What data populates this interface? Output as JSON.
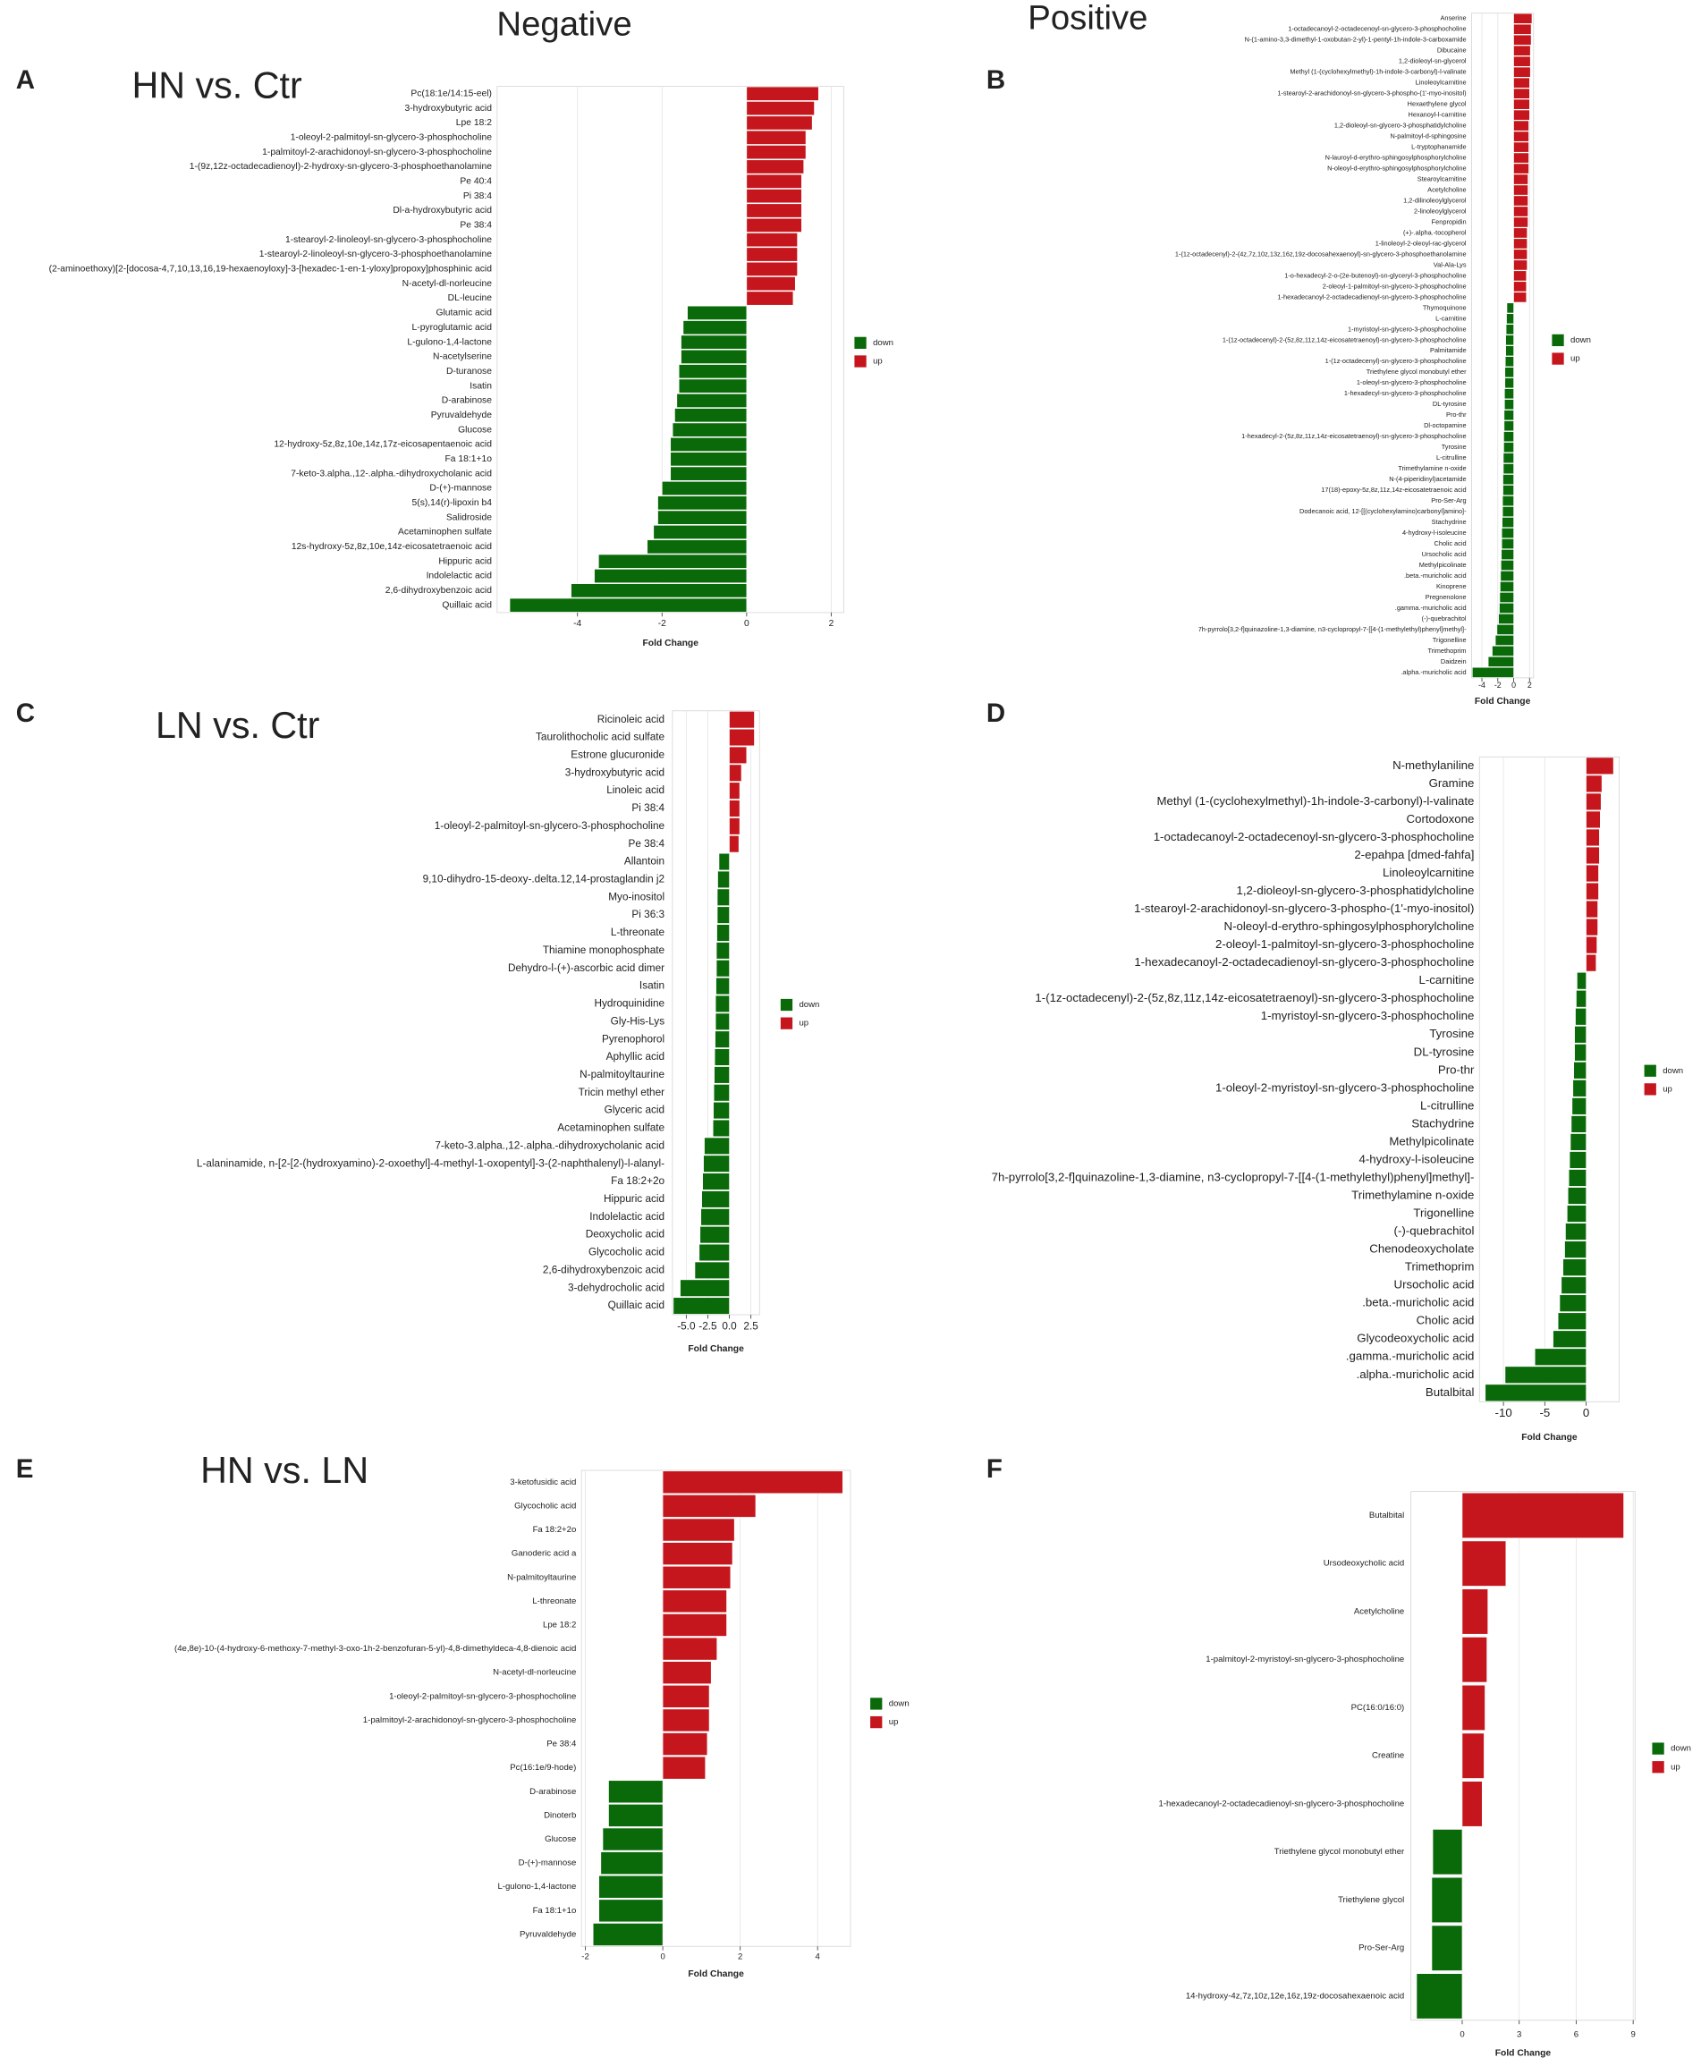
{
  "columns": [
    "Negative",
    "Positive"
  ],
  "chart_data": [
    {
      "type": "bar",
      "orientation": "horizontal",
      "panel": "A",
      "title": "HN vs. Ctr",
      "xlabel": "Fold Change",
      "categories": [
        "Pc(18:1e/14:15-eel)",
        "3-hydroxybutyric acid",
        "Lpe 18:2",
        "1-oleoyl-2-palmitoyl-sn-glycero-3-phosphocholine",
        "1-palmitoyl-2-arachidonoyl-sn-glycero-3-phosphocholine",
        "1-(9z,12z-octadecadienoyl)-2-hydroxy-sn-glycero-3-phosphoethanolamine",
        "Pe 40:4",
        "Pi 38:4",
        "Dl-a-hydroxybutyric acid",
        "Pe 38:4",
        "1-stearoyl-2-linoleoyl-sn-glycero-3-phosphocholine",
        "1-stearoyl-2-linoleoyl-sn-glycero-3-phosphoethanolamine",
        "(2-aminoethoxy)[2-[docosa-4,7,10,13,16,19-hexaenoyloxy]-3-[hexadec-1-en-1-yloxy]propoxy]phosphinic acid",
        "N-acetyl-dl-norleucine",
        "DL-leucine",
        "Glutamic acid",
        "L-pyroglutamic acid",
        "L-gulono-1,4-lactone",
        "N-acetylserine",
        "D-turanose",
        "Isatin",
        "D-arabinose",
        "Pyruvaldehyde",
        "Glucose",
        "12-hydroxy-5z,8z,10e,14z,17z-eicosapentaenoic acid",
        "Fa 18:1+1o",
        "7-keto-3.alpha.,12-.alpha.-dihydroxycholanic acid",
        "D-(+)-mannose",
        "5(s),14(r)-lipoxin b4",
        "Salidroside",
        "Acetaminophen sulfate",
        "12s-hydroxy-5z,8z,10e,14z-eicosatetraenoic acid",
        "Hippuric acid",
        "Indolelactic acid",
        "2,6-dihydroxybenzoic acid",
        "Quillaic acid"
      ],
      "values": [
        1.7,
        1.6,
        1.55,
        1.4,
        1.4,
        1.35,
        1.3,
        1.3,
        1.3,
        1.3,
        1.2,
        1.2,
        1.2,
        1.15,
        1.1,
        -1.4,
        -1.5,
        -1.55,
        -1.55,
        -1.6,
        -1.6,
        -1.65,
        -1.7,
        -1.75,
        -1.8,
        -1.8,
        -1.8,
        -2.0,
        -2.1,
        -2.1,
        -2.2,
        -2.35,
        -3.5,
        -3.6,
        -4.15,
        -5.6
      ],
      "xlim": [
        -5.9,
        2.3
      ],
      "xticks": [
        -4,
        -2,
        0,
        2
      ],
      "grid": true,
      "legend": [
        {
          "name": "down",
          "color": "#0a6a0a"
        },
        {
          "name": "up",
          "color": "#c4161c"
        }
      ]
    },
    {
      "type": "bar",
      "orientation": "horizontal",
      "panel": "B",
      "xlabel": "Fold Change",
      "categories": [
        "Anserine",
        "1-octadecanoyl-2-octadecenoyl-sn-glycero-3-phosphocholine",
        "N-(1-amino-3,3-dimethyl-1-oxobutan-2-yl)-1-pentyl-1h-indole-3-carboxamide",
        "Dibucaine",
        "1,2-dioleoyl-sn-glycerol",
        "Methyl (1-(cyclohexylmethyl)-1h-indole-3-carbonyl)-l-valinate",
        "Linoleoylcarnitine",
        "1-stearoyl-2-arachidonoyl-sn-glycero-3-phospho-(1'-myo-inositol)",
        "Hexaethylene glycol",
        "Hexanoyl-l-carnitine",
        "1,2-dioleoyl-sn-glycero-3-phosphatidylcholine",
        "N-palmitoyl-d-sphingosine",
        "L-tryptophanamide",
        "N-lauroyl-d-erythro-sphingosylphosphorylcholine",
        "N-oleoyl-d-erythro-sphingosylphosphorylcholine",
        "Stearoylcarnitine",
        "Acetylcholine",
        "1,2-dilinoleoylglycerol",
        "2-linoleoylglycerol",
        "Fenpropidin",
        "(+)-.alpha.-tocopherol",
        "1-linoleoyl-2-oleoyl-rac-glycerol",
        "1-(1z-octadecenyl)-2-(4z,7z,10z,13z,16z,19z-docosahexaenoyl)-sn-glycero-3-phosphoethanolamine",
        "Val-Ala-Lys",
        "1-o-hexadecyl-2-o-(2e-butenoyl)-sn-glyceryl-3-phosphocholine",
        "2-oleoyl-1-palmitoyl-sn-glycero-3-phosphocholine",
        "1-hexadecanoyl-2-octadecadienoyl-sn-glycero-3-phosphocholine",
        "Thymoquinone",
        "L-carnitine",
        "1-myristoyl-sn-glycero-3-phosphocholine",
        "1-(1z-octadecenyl)-2-(5z,8z,11z,14z-eicosatetraenoyl)-sn-glycero-3-phosphocholine",
        "Palmitamide",
        "1-(1z-octadecenyl)-sn-glycero-3-phosphocholine",
        "Triethylene glycol monobutyl ether",
        "1-oleoyl-sn-glycero-3-phosphocholine",
        "1-hexadecyl-sn-glycero-3-phosphocholine",
        "DL-tyrosine",
        "Pro-thr",
        "Dl-octopamine",
        "1-hexadecyl-2-(5z,8z,11z,14z-eicosatetraenoyl)-sn-glycero-3-phosphocholine",
        "Tyrosine",
        "L-citrulline",
        "Trimethylamine n-oxide",
        "N-(4-piperidinyl)acetamide",
        "17(18)-epoxy-5z,8z,11z,14z-eicosatetraenoic acid",
        "Pro-Ser-Arg",
        "Dodecanoic acid, 12-[[(cyclohexylamino)carbonyl]amino]-",
        "Stachydrine",
        "4-hydroxy-l-isoleucine",
        "Cholic acid",
        "Ursocholic acid",
        "Methylpicolinate",
        ".beta.-muricholic acid",
        "Kinoprene",
        "Pregnenolone",
        ".gamma.-muricholic acid",
        "(-)-quebrachitol",
        "7h-pyrrolo[3,2-f]quinazoline-1,3-diamine, n3-cyclopropyl-7-[[4-(1-methylethyl)phenyl]methyl]-",
        "Trigonelline",
        "Trimethoprim",
        "Daidzein",
        ".alpha.-muricholic acid"
      ],
      "values": [
        2.3,
        2.2,
        2.2,
        2.1,
        2.1,
        2.1,
        2.0,
        2.0,
        2.0,
        2.0,
        1.9,
        1.9,
        1.9,
        1.9,
        1.9,
        1.8,
        1.8,
        1.8,
        1.8,
        1.8,
        1.7,
        1.7,
        1.7,
        1.7,
        1.6,
        1.6,
        1.6,
        -0.85,
        -0.9,
        -0.95,
        -1.0,
        -1.0,
        -1.05,
        -1.1,
        -1.1,
        -1.15,
        -1.15,
        -1.2,
        -1.2,
        -1.25,
        -1.25,
        -1.3,
        -1.3,
        -1.35,
        -1.35,
        -1.4,
        -1.4,
        -1.45,
        -1.5,
        -1.5,
        -1.55,
        -1.6,
        -1.65,
        -1.7,
        -1.75,
        -1.8,
        -1.9,
        -2.1,
        -2.3,
        -2.7,
        -3.2,
        -5.2
      ],
      "xlim": [
        -5.3,
        2.5
      ],
      "xticks": [
        -4,
        -2,
        0,
        2
      ],
      "grid": true,
      "legend": [
        {
          "name": "down",
          "color": "#0a6a0a"
        },
        {
          "name": "up",
          "color": "#c4161c"
        }
      ]
    },
    {
      "type": "bar",
      "orientation": "horizontal",
      "panel": "C",
      "title": "LN vs. Ctr",
      "xlabel": "Fold Change",
      "categories": [
        "Ricinoleic acid",
        "Taurolithocholic acid sulfate",
        "Estrone glucuronide",
        "3-hydroxybutyric acid",
        "Linoleic acid",
        "Pi 38:4",
        "1-oleoyl-2-palmitoyl-sn-glycero-3-phosphocholine",
        "Pe 38:4",
        "Allantoin",
        "9,10-dihydro-15-deoxy-.delta.12,14-prostaglandin j2",
        "Myo-inositol",
        "Pi 36:3",
        "L-threonate",
        "Thiamine monophosphate",
        "Dehydro-l-(+)-ascorbic acid dimer",
        "Isatin",
        "Hydroquinidine",
        "Gly-His-Lys",
        "Pyrenophorol",
        "Aphyllic acid",
        "N-palmitoyltaurine",
        "Tricin methyl ether",
        "Glyceric acid",
        "Acetaminophen sulfate",
        "7-keto-3.alpha.,12-.alpha.-dihydroxycholanic acid",
        "L-alaninamide, n-[2-[2-(hydroxyamino)-2-oxoethyl]-4-methyl-1-oxopentyl]-3-(2-naphthalenyl)-l-alanyl-",
        "Fa 18:2+2o",
        "Hippuric acid",
        "Indolelactic acid",
        "Deoxycholic acid",
        "Glycocholic acid",
        "2,6-dihydroxybenzoic acid",
        "3-dehydrocholic acid",
        "Quillaic acid"
      ],
      "values": [
        2.9,
        2.9,
        2.0,
        1.4,
        1.2,
        1.2,
        1.2,
        1.1,
        -1.2,
        -1.35,
        -1.4,
        -1.4,
        -1.45,
        -1.5,
        -1.5,
        -1.55,
        -1.6,
        -1.6,
        -1.65,
        -1.7,
        -1.75,
        -1.8,
        -1.85,
        -1.9,
        -2.9,
        -3.0,
        -3.1,
        -3.2,
        -3.3,
        -3.4,
        -3.5,
        -4.0,
        -5.7,
        -6.5
      ],
      "xlim": [
        -6.6,
        3.5
      ],
      "xticks": [
        {
          "value": -5,
          "label": "-5.0"
        },
        -2.5,
        {
          "value": 0,
          "label": "0.0"
        },
        2.5
      ],
      "grid": true,
      "legend": [
        {
          "name": "down",
          "color": "#0a6a0a"
        },
        {
          "name": "up",
          "color": "#c4161c"
        }
      ]
    },
    {
      "type": "bar",
      "orientation": "horizontal",
      "panel": "D",
      "xlabel": "Fold Change",
      "categories": [
        "N-methylaniline",
        "Gramine",
        "Methyl (1-(cyclohexylmethyl)-1h-indole-3-carbonyl)-l-valinate",
        "Cortodoxone",
        "1-octadecanoyl-2-octadecenoyl-sn-glycero-3-phosphocholine",
        "2-epahpa [dmed-fahfa]",
        "Linoleoylcarnitine",
        "1,2-dioleoyl-sn-glycero-3-phosphatidylcholine",
        "1-stearoyl-2-arachidonoyl-sn-glycero-3-phospho-(1'-myo-inositol)",
        "N-oleoyl-d-erythro-sphingosylphosphorylcholine",
        "2-oleoyl-1-palmitoyl-sn-glycero-3-phosphocholine",
        "1-hexadecanoyl-2-octadecadienoyl-sn-glycero-3-phosphocholine",
        "L-carnitine",
        "1-(1z-octadecenyl)-2-(5z,8z,11z,14z-eicosatetraenoyl)-sn-glycero-3-phosphocholine",
        "1-myristoyl-sn-glycero-3-phosphocholine",
        "Tyrosine",
        "DL-tyrosine",
        "Pro-thr",
        "1-oleoyl-2-myristoyl-sn-glycero-3-phosphocholine",
        "L-citrulline",
        "Stachydrine",
        "Methylpicolinate",
        "4-hydroxy-l-isoleucine",
        "7h-pyrrolo[3,2-f]quinazoline-1,3-diamine, n3-cyclopropyl-7-[[4-(1-methylethyl)phenyl]methyl]-",
        "Trimethylamine n-oxide",
        "Trigonelline",
        "(-)-quebrachitol",
        "Chenodeoxycholate",
        "Trimethoprim",
        "Ursocholic acid",
        ".beta.-muricholic acid",
        "Cholic acid",
        "Glycodeoxycholic acid",
        ".gamma.-muricholic acid",
        ".alpha.-muricholic acid",
        "Butalbital"
      ],
      "values": [
        3.3,
        1.9,
        1.8,
        1.7,
        1.6,
        1.6,
        1.5,
        1.5,
        1.4,
        1.4,
        1.3,
        1.2,
        -1.1,
        -1.2,
        -1.3,
        -1.4,
        -1.4,
        -1.5,
        -1.6,
        -1.7,
        -1.8,
        -1.9,
        -2.0,
        -2.1,
        -2.2,
        -2.3,
        -2.5,
        -2.6,
        -2.8,
        -3.0,
        -3.2,
        -3.4,
        -4.0,
        -6.2,
        -9.8,
        -12.2
      ],
      "xlim": [
        -12.9,
        4.0
      ],
      "xticks": [
        -10,
        -5,
        0
      ],
      "grid": true,
      "legend": [
        {
          "name": "down",
          "color": "#0a6a0a"
        },
        {
          "name": "up",
          "color": "#c4161c"
        }
      ]
    },
    {
      "type": "bar",
      "orientation": "horizontal",
      "panel": "E",
      "title": "HN vs. LN",
      "xlabel": "Fold Change",
      "categories": [
        "3-ketofusidic acid",
        "Glycocholic acid",
        "Fa 18:2+2o",
        "Ganoderic acid a",
        "N-palmitoyltaurine",
        "L-threonate",
        "Lpe 18:2",
        "(4e,8e)-10-(4-hydroxy-6-methoxy-7-methyl-3-oxo-1h-2-benzofuran-5-yl)-4,8-dimethyldeca-4,8-dienoic acid",
        "N-acetyl-dl-norleucine",
        "1-oleoyl-2-palmitoyl-sn-glycero-3-phosphocholine",
        "1-palmitoyl-2-arachidonoyl-sn-glycero-3-phosphocholine",
        "Pe 38:4",
        "Pc(16:1e/9-hode)",
        "D-arabinose",
        "Dinoterb",
        "Glucose",
        "D-(+)-mannose",
        "L-gulono-1,4-lactone",
        "Fa 18:1+1o",
        "Pyruvaldehyde"
      ],
      "values": [
        4.65,
        2.4,
        1.85,
        1.8,
        1.75,
        1.65,
        1.65,
        1.4,
        1.25,
        1.2,
        1.2,
        1.15,
        1.1,
        -1.4,
        -1.4,
        -1.55,
        -1.6,
        -1.65,
        -1.65,
        -1.8
      ],
      "xlim": [
        -2.1,
        4.85
      ],
      "xticks": [
        -2,
        0,
        2,
        4
      ],
      "grid": true,
      "legend": [
        {
          "name": "down",
          "color": "#0a6a0a"
        },
        {
          "name": "up",
          "color": "#c4161c"
        }
      ]
    },
    {
      "type": "bar",
      "orientation": "horizontal",
      "panel": "F",
      "xlabel": "Fold Change",
      "categories": [
        "Butalbital",
        "Ursodeoxycholic acid",
        "Acetylcholine",
        "1-palmitoyl-2-myristoyl-sn-glycero-3-phosphocholine",
        "PC(16:0/16:0)",
        "Creatine",
        "1-hexadecanoyl-2-octadecadienoyl-sn-glycero-3-phosphocholine",
        "Triethylene glycol monobutyl ether",
        "Triethylene glycol",
        "Pro-Ser-Arg",
        "14-hydroxy-4z,7z,10z,12e,16z,19z-docosahexaenoic acid"
      ],
      "values": [
        8.5,
        2.3,
        1.35,
        1.3,
        1.2,
        1.15,
        1.05,
        -1.55,
        -1.6,
        -1.6,
        -2.4
      ],
      "xlim": [
        -2.7,
        9.1
      ],
      "xticks": [
        0,
        3,
        6,
        9
      ],
      "grid": true,
      "legend": [
        {
          "name": "down",
          "color": "#0a6a0a"
        },
        {
          "name": "up",
          "color": "#c4161c"
        }
      ]
    }
  ]
}
